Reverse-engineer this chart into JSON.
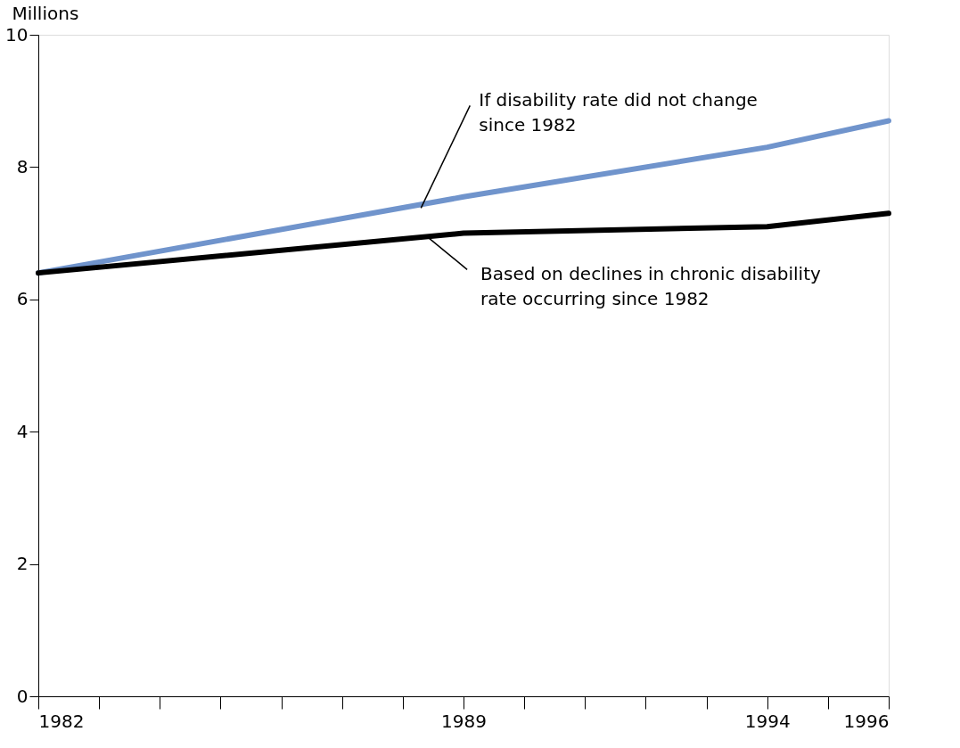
{
  "chart_data": {
    "type": "line",
    "ylabel": "Millions",
    "x": [
      1982,
      1989,
      1994,
      1996
    ],
    "series": [
      {
        "color": "#7094cc",
        "values": [
          6.4,
          7.55,
          8.3,
          8.7
        ]
      },
      {
        "color": "#000000",
        "values": [
          6.4,
          7.0,
          7.1,
          7.3
        ]
      }
    ],
    "xlim": [
      1982,
      1996
    ],
    "xticks": [
      1982,
      {
        "value": 1983,
        "label": null
      },
      {
        "value": 1984,
        "label": null
      },
      {
        "value": 1985,
        "label": null
      },
      {
        "value": 1986,
        "label": null
      },
      {
        "value": 1987,
        "label": null
      },
      {
        "value": 1988,
        "label": null
      },
      1989,
      {
        "value": 1990,
        "label": null
      },
      {
        "value": 1991,
        "label": null
      },
      {
        "value": 1992,
        "label": null
      },
      {
        "value": 1993,
        "label": null
      },
      1994,
      {
        "value": 1995,
        "label": null
      },
      1996
    ],
    "ylim": [
      0,
      10
    ],
    "yticks": [
      0,
      2,
      4,
      6,
      8,
      10
    ],
    "grid": false,
    "marker": "none",
    "line_style": "solid",
    "annotations": [
      {
        "text": "If disability rate did not change\nsince 1982",
        "x": 1988.3,
        "y": 7.38
      },
      {
        "text": "Based on declines in chronic disability\nrate occurring since 1982",
        "x": 1988.4,
        "y": 6.95
      }
    ]
  }
}
